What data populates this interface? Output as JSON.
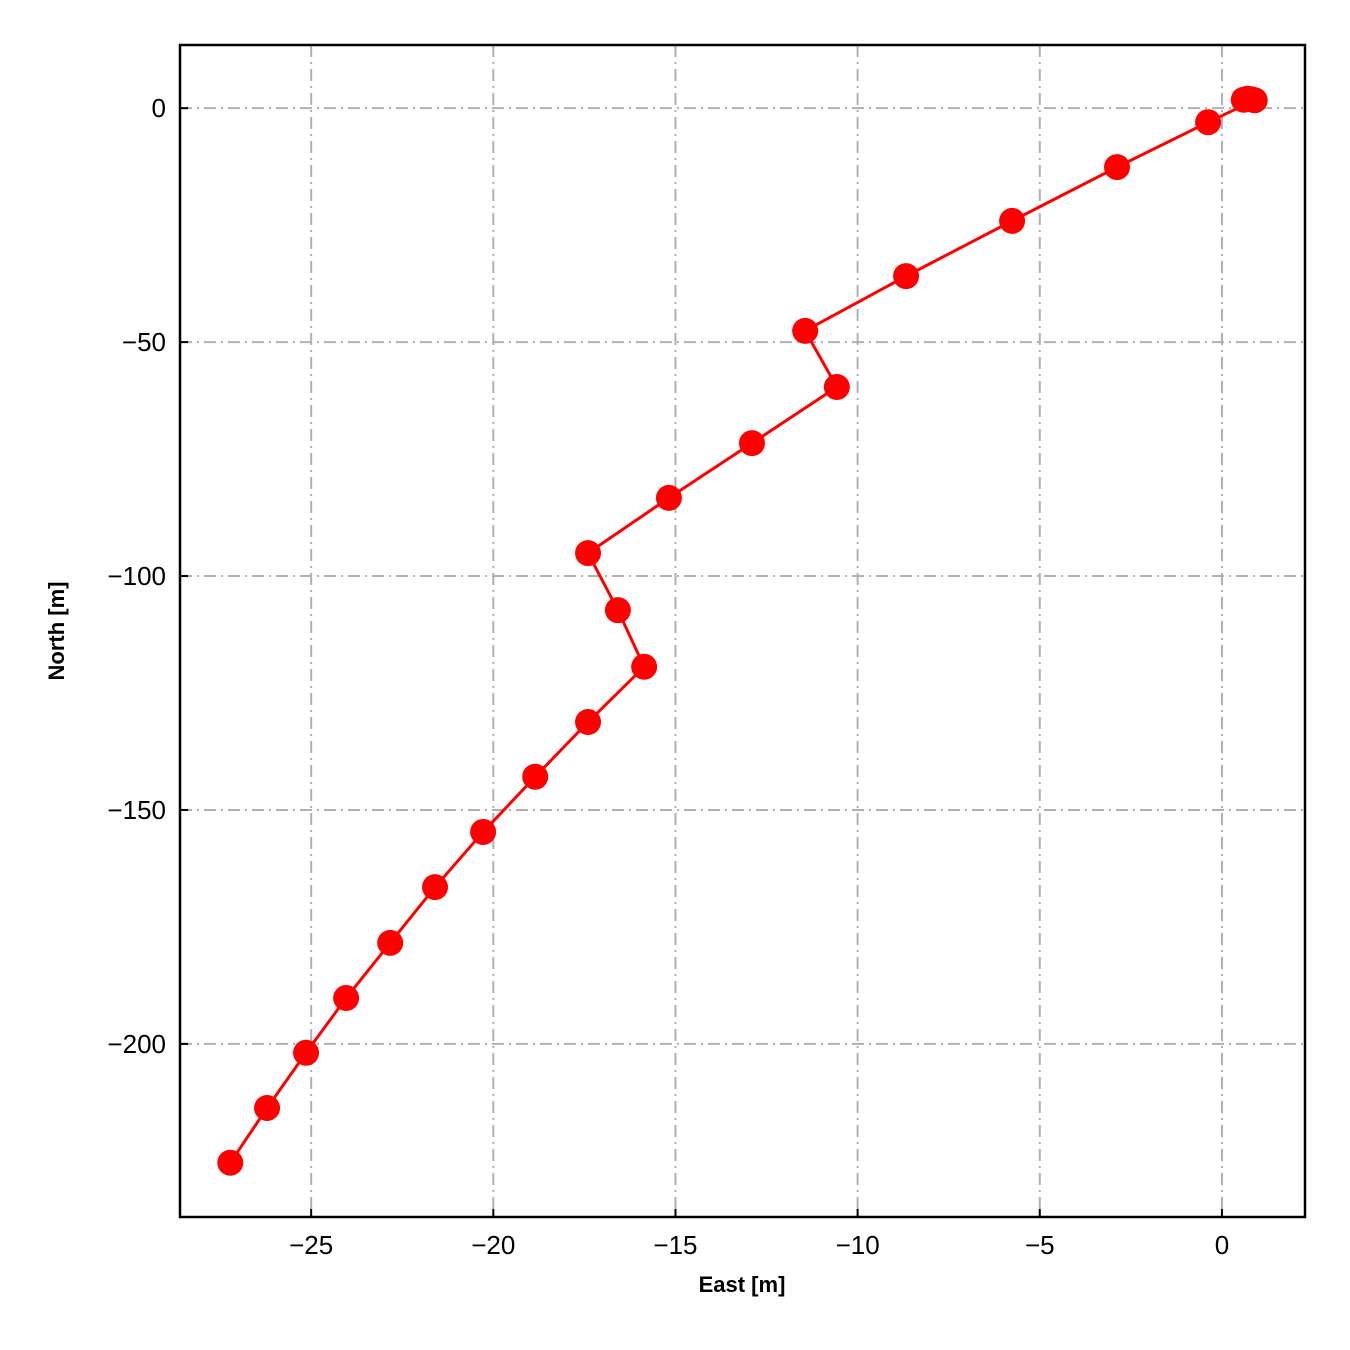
{
  "chart_data": {
    "type": "line",
    "x_label": "East [m]",
    "y_label": "North [m]",
    "x": [
      0.6,
      0.7,
      0.8,
      0.9,
      -0.38,
      -2.88,
      -5.76,
      -8.67,
      -11.44,
      -10.57,
      -12.9,
      -15.18,
      -17.4,
      -16.58,
      -15.86,
      -17.4,
      -18.85,
      -20.28,
      -21.6,
      -22.83,
      -24.04,
      -25.14,
      -26.21,
      -27.22
    ],
    "values": [
      1.8,
      2.0,
      1.9,
      1.7,
      -3.0,
      -12.6,
      -24.1,
      -35.9,
      -47.6,
      -59.6,
      -71.6,
      -83.3,
      -95.1,
      -107.3,
      -119.4,
      -131.2,
      -142.9,
      -154.7,
      -166.5,
      -178.4,
      -190.2,
      -201.9,
      -213.7,
      -225.4
    ],
    "color": "#ff0000",
    "xlim": [
      -28.6,
      2.28
    ],
    "ylim": [
      -237.0,
      13.5
    ],
    "xticks": [
      {
        "value": -25,
        "label": "−25"
      },
      {
        "value": -20,
        "label": "−20"
      },
      {
        "value": -15,
        "label": "−15"
      },
      {
        "value": -10,
        "label": "−10"
      },
      {
        "value": -5,
        "label": "−5"
      },
      0
    ],
    "yticks": [
      {
        "value": -200,
        "label": "−200"
      },
      {
        "value": -150,
        "label": "−150"
      },
      {
        "value": -100,
        "label": "−100"
      },
      {
        "value": -50,
        "label": "−50"
      },
      0
    ],
    "grid": true
  }
}
